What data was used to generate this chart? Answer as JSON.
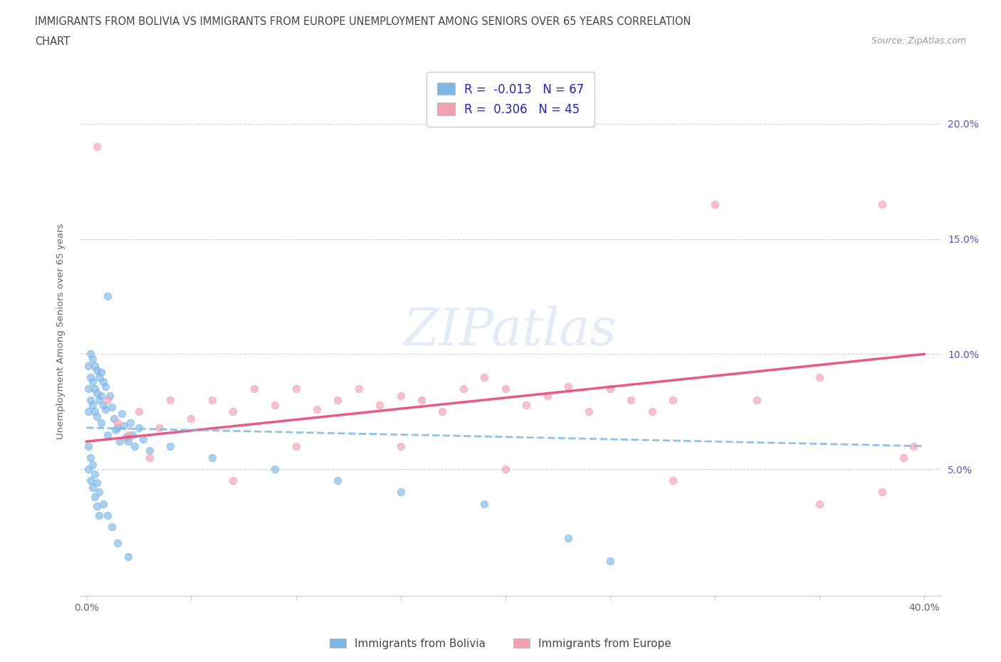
{
  "title_line1": "IMMIGRANTS FROM BOLIVIA VS IMMIGRANTS FROM EUROPE UNEMPLOYMENT AMONG SENIORS OVER 65 YEARS CORRELATION",
  "title_line2": "CHART",
  "source_text": "Source: ZipAtlas.com",
  "ylabel": "Unemployment Among Seniors over 65 years",
  "xlim": [
    -0.003,
    0.408
  ],
  "ylim": [
    -0.005,
    0.225
  ],
  "xticks": [
    0.0,
    0.05,
    0.1,
    0.15,
    0.2,
    0.25,
    0.3,
    0.35,
    0.4
  ],
  "xticklabels": [
    "0.0%",
    "",
    "",
    "",
    "",
    "",
    "",
    "",
    "40.0%"
  ],
  "yticks": [
    0.05,
    0.1,
    0.15,
    0.2
  ],
  "yticklabels": [
    "5.0%",
    "10.0%",
    "15.0%",
    "20.0%"
  ],
  "bolivia_color": "#7bb8e8",
  "europe_color": "#f4a0b0",
  "bolivia_line_color": "#7bb8e8",
  "europe_line_color": "#e8507a",
  "bolivia_R": -0.013,
  "bolivia_N": 67,
  "europe_R": 0.306,
  "europe_N": 45,
  "legend_label_bolivia": "Immigrants from Bolivia",
  "legend_label_europe": "Immigrants from Europe",
  "bolivia_x": [
    0.001,
    0.001,
    0.001,
    0.002,
    0.002,
    0.002,
    0.003,
    0.003,
    0.003,
    0.004,
    0.004,
    0.004,
    0.005,
    0.005,
    0.005,
    0.006,
    0.006,
    0.007,
    0.007,
    0.007,
    0.008,
    0.008,
    0.009,
    0.009,
    0.01,
    0.01,
    0.011,
    0.012,
    0.013,
    0.014,
    0.015,
    0.016,
    0.017,
    0.018,
    0.019,
    0.02,
    0.021,
    0.022,
    0.023,
    0.025,
    0.027,
    0.03,
    0.001,
    0.001,
    0.002,
    0.002,
    0.003,
    0.003,
    0.004,
    0.004,
    0.005,
    0.005,
    0.006,
    0.006,
    0.008,
    0.01,
    0.012,
    0.015,
    0.02,
    0.04,
    0.06,
    0.09,
    0.12,
    0.15,
    0.19,
    0.23,
    0.25
  ],
  "bolivia_y": [
    0.095,
    0.085,
    0.075,
    0.1,
    0.09,
    0.08,
    0.098,
    0.088,
    0.078,
    0.095,
    0.085,
    0.075,
    0.093,
    0.083,
    0.073,
    0.09,
    0.08,
    0.092,
    0.082,
    0.07,
    0.088,
    0.078,
    0.086,
    0.076,
    0.125,
    0.065,
    0.082,
    0.077,
    0.072,
    0.067,
    0.068,
    0.062,
    0.074,
    0.069,
    0.064,
    0.062,
    0.07,
    0.065,
    0.06,
    0.068,
    0.063,
    0.058,
    0.06,
    0.05,
    0.055,
    0.045,
    0.052,
    0.042,
    0.048,
    0.038,
    0.044,
    0.034,
    0.04,
    0.03,
    0.035,
    0.03,
    0.025,
    0.018,
    0.012,
    0.06,
    0.055,
    0.05,
    0.045,
    0.04,
    0.035,
    0.02,
    0.01
  ],
  "europe_x": [
    0.005,
    0.01,
    0.015,
    0.02,
    0.025,
    0.03,
    0.035,
    0.04,
    0.05,
    0.06,
    0.07,
    0.08,
    0.09,
    0.1,
    0.11,
    0.12,
    0.13,
    0.14,
    0.15,
    0.16,
    0.17,
    0.18,
    0.19,
    0.2,
    0.21,
    0.22,
    0.23,
    0.24,
    0.25,
    0.26,
    0.27,
    0.28,
    0.3,
    0.32,
    0.35,
    0.38,
    0.39,
    0.395,
    0.07,
    0.1,
    0.15,
    0.2,
    0.28,
    0.35,
    0.38
  ],
  "europe_y": [
    0.19,
    0.08,
    0.07,
    0.065,
    0.075,
    0.055,
    0.068,
    0.08,
    0.072,
    0.08,
    0.075,
    0.085,
    0.078,
    0.085,
    0.076,
    0.08,
    0.085,
    0.078,
    0.082,
    0.08,
    0.075,
    0.085,
    0.09,
    0.085,
    0.078,
    0.082,
    0.086,
    0.075,
    0.085,
    0.08,
    0.075,
    0.08,
    0.165,
    0.08,
    0.09,
    0.165,
    0.055,
    0.06,
    0.045,
    0.06,
    0.06,
    0.05,
    0.045,
    0.035,
    0.04
  ],
  "europe_trend_x": [
    0.0,
    0.4
  ],
  "europe_trend_y": [
    0.062,
    0.1
  ],
  "bolivia_trend_x": [
    0.0,
    0.4
  ],
  "bolivia_trend_y": [
    0.068,
    0.06
  ]
}
